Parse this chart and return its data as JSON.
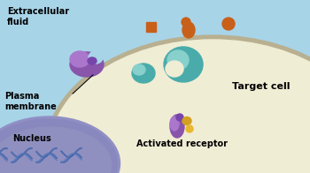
{
  "bg_sky": "#a8d4e8",
  "bg_cell": "#f0edd5",
  "membrane_color": "#b8b090",
  "nucleus_color": "#8080b8",
  "nucleus_inner": "#7878b0",
  "dna_color1": "#4466aa",
  "dna_color2": "#5577bb",
  "hormone_color": "#c8601a",
  "teal_color": "#4aacaa",
  "teal_light": "#88d0cc",
  "purple_color": "#8855aa",
  "purple_light": "#aa77cc",
  "gold_color": "#d4a020",
  "gold_light": "#e8b830",
  "extracellular_label": "Extracellular\nfluid",
  "plasma_membrane_label": "Plasma\nmembrane",
  "target_cell_label": "Target cell",
  "nucleus_label": "Nucleus",
  "activated_receptor_label": "Activated receptor",
  "label_fontsize": 7,
  "figsize": [
    3.5,
    1.96
  ],
  "dpi": 100
}
